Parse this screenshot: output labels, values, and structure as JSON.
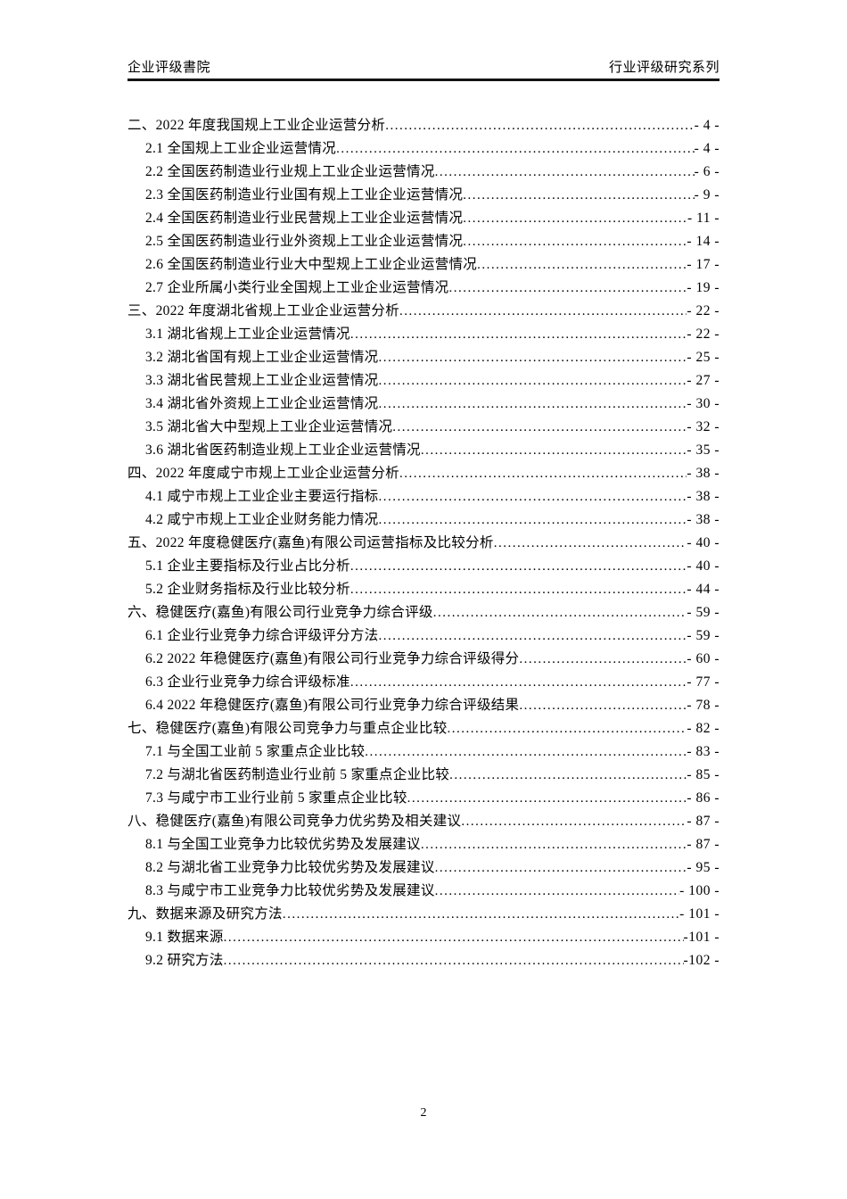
{
  "header": {
    "left": "企业评级書院",
    "right": "行业评级研究系列"
  },
  "toc": {
    "entries": [
      {
        "level": 1,
        "title": "二、2022 年度我国规上工业企业运营分析",
        "page": "- 4 -"
      },
      {
        "level": 2,
        "title": "2.1 全国规上工业企业运营情况",
        "page": "- 4 -"
      },
      {
        "level": 2,
        "title": "2.2 全国医药制造业行业规上工业企业运营情况",
        "page": "- 6 -"
      },
      {
        "level": 2,
        "title": "2.3 全国医药制造业行业国有规上工业企业运营情况",
        "page": "- 9 -"
      },
      {
        "level": 2,
        "title": "2.4 全国医药制造业行业民营规上工业企业运营情况",
        "page": "- 11 -"
      },
      {
        "level": 2,
        "title": "2.5 全国医药制造业行业外资规上工业企业运营情况",
        "page": "- 14 -"
      },
      {
        "level": 2,
        "title": "2.6 全国医药制造业行业大中型规上工业企业运营情况",
        "page": "- 17 -"
      },
      {
        "level": 2,
        "title": "2.7 企业所属小类行业全国规上工业企业运营情况",
        "page": "- 19 -"
      },
      {
        "level": 1,
        "title": "三、2022 年度湖北省规上工业企业运营分析",
        "page": "- 22 -"
      },
      {
        "level": 2,
        "title": "3.1 湖北省规上工业企业运营情况",
        "page": "- 22 -"
      },
      {
        "level": 2,
        "title": "3.2 湖北省国有规上工业企业运营情况",
        "page": "- 25 -"
      },
      {
        "level": 2,
        "title": "3.3 湖北省民营规上工业企业运营情况",
        "page": "- 27 -"
      },
      {
        "level": 2,
        "title": "3.4 湖北省外资规上工业企业运营情况",
        "page": "- 30 -"
      },
      {
        "level": 2,
        "title": "3.5 湖北省大中型规上工业企业运营情况",
        "page": "- 32 -"
      },
      {
        "level": 2,
        "title": "3.6 湖北省医药制造业规上工业企业运营情况",
        "page": "- 35 -"
      },
      {
        "level": 1,
        "title": "四、2022 年度咸宁市规上工业企业运营分析",
        "page": "- 38 -"
      },
      {
        "level": 2,
        "title": "4.1 咸宁市规上工业企业主要运行指标",
        "page": "- 38 -"
      },
      {
        "level": 2,
        "title": "4.2 咸宁市规上工业企业财务能力情况",
        "page": "- 38 -"
      },
      {
        "level": 1,
        "title": "五、2022 年度稳健医疗(嘉鱼)有限公司运营指标及比较分析",
        "page": "- 40 -"
      },
      {
        "level": 2,
        "title": "5.1 企业主要指标及行业占比分析",
        "page": "- 40 -"
      },
      {
        "level": 2,
        "title": "5.2 企业财务指标及行业比较分析",
        "page": "- 44 -"
      },
      {
        "level": 1,
        "title": "六、稳健医疗(嘉鱼)有限公司行业竞争力综合评级",
        "page": "- 59 -"
      },
      {
        "level": 2,
        "title": "6.1 企业行业竞争力综合评级评分方法",
        "page": "- 59 -"
      },
      {
        "level": 2,
        "title": "6.2 2022 年稳健医疗(嘉鱼)有限公司行业竞争力综合评级得分",
        "page": "- 60 -"
      },
      {
        "level": 2,
        "title": "6.3 企业行业竞争力综合评级标准",
        "page": "- 77 -"
      },
      {
        "level": 2,
        "title": "6.4 2022 年稳健医疗(嘉鱼)有限公司行业竞争力综合评级结果",
        "page": "- 78 -"
      },
      {
        "level": 1,
        "title": "七、稳健医疗(嘉鱼)有限公司竞争力与重点企业比较",
        "page": "- 82 -"
      },
      {
        "level": 2,
        "title": "7.1 与全国工业前 5 家重点企业比较",
        "page": "- 83 -"
      },
      {
        "level": 2,
        "title": "7.2 与湖北省医药制造业行业前 5 家重点企业比较",
        "page": "- 85 -"
      },
      {
        "level": 2,
        "title": "7.3 与咸宁市工业行业前 5 家重点企业比较",
        "page": "- 86 -"
      },
      {
        "level": 1,
        "title": "八、稳健医疗(嘉鱼)有限公司竞争力优劣势及相关建议",
        "page": "- 87 -"
      },
      {
        "level": 2,
        "title": "8.1 与全国工业竞争力比较优劣势及发展建议",
        "page": "- 87 -"
      },
      {
        "level": 2,
        "title": "8.2 与湖北省工业竞争力比较优劣势及发展建议",
        "page": "- 95 -"
      },
      {
        "level": 2,
        "title": "8.3 与咸宁市工业竞争力比较优劣势及发展建议",
        "page": "- 100 -"
      },
      {
        "level": 1,
        "title": "九、数据来源及研究方法",
        "page": "- 101 -"
      },
      {
        "level": 2,
        "title": "9.1 数据来源",
        "page": "-101 -"
      },
      {
        "level": 2,
        "title": "9.2 研究方法",
        "page": "-102 -"
      }
    ]
  },
  "footer": {
    "page_number": "2"
  }
}
